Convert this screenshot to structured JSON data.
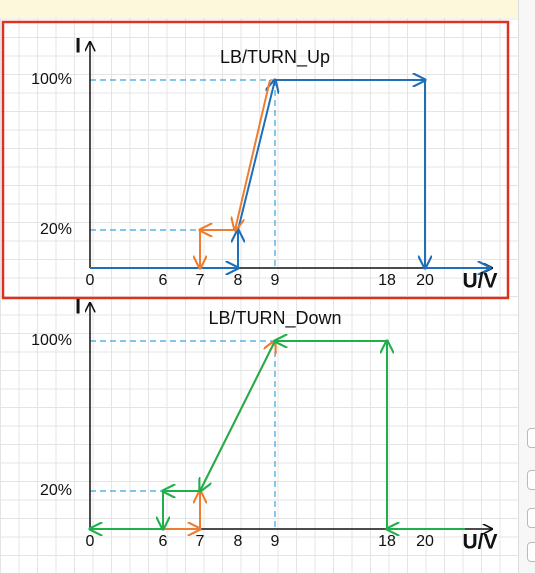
{
  "charts": [
    {
      "title": "LB/TURN_Up",
      "y_axis_label": "I",
      "x_axis_label": "U/V",
      "y_tick_labels": [
        "100%",
        "20%"
      ],
      "x_tick_labels": [
        "0",
        "6",
        "7",
        "8",
        "9",
        "18",
        "20"
      ]
    },
    {
      "title": "LB/TURN_Down",
      "y_axis_label": "I",
      "x_axis_label": "U/V",
      "y_tick_labels": [
        "100%",
        "20%"
      ],
      "x_tick_labels": [
        "0",
        "6",
        "7",
        "8",
        "9",
        "18",
        "20"
      ]
    }
  ]
}
